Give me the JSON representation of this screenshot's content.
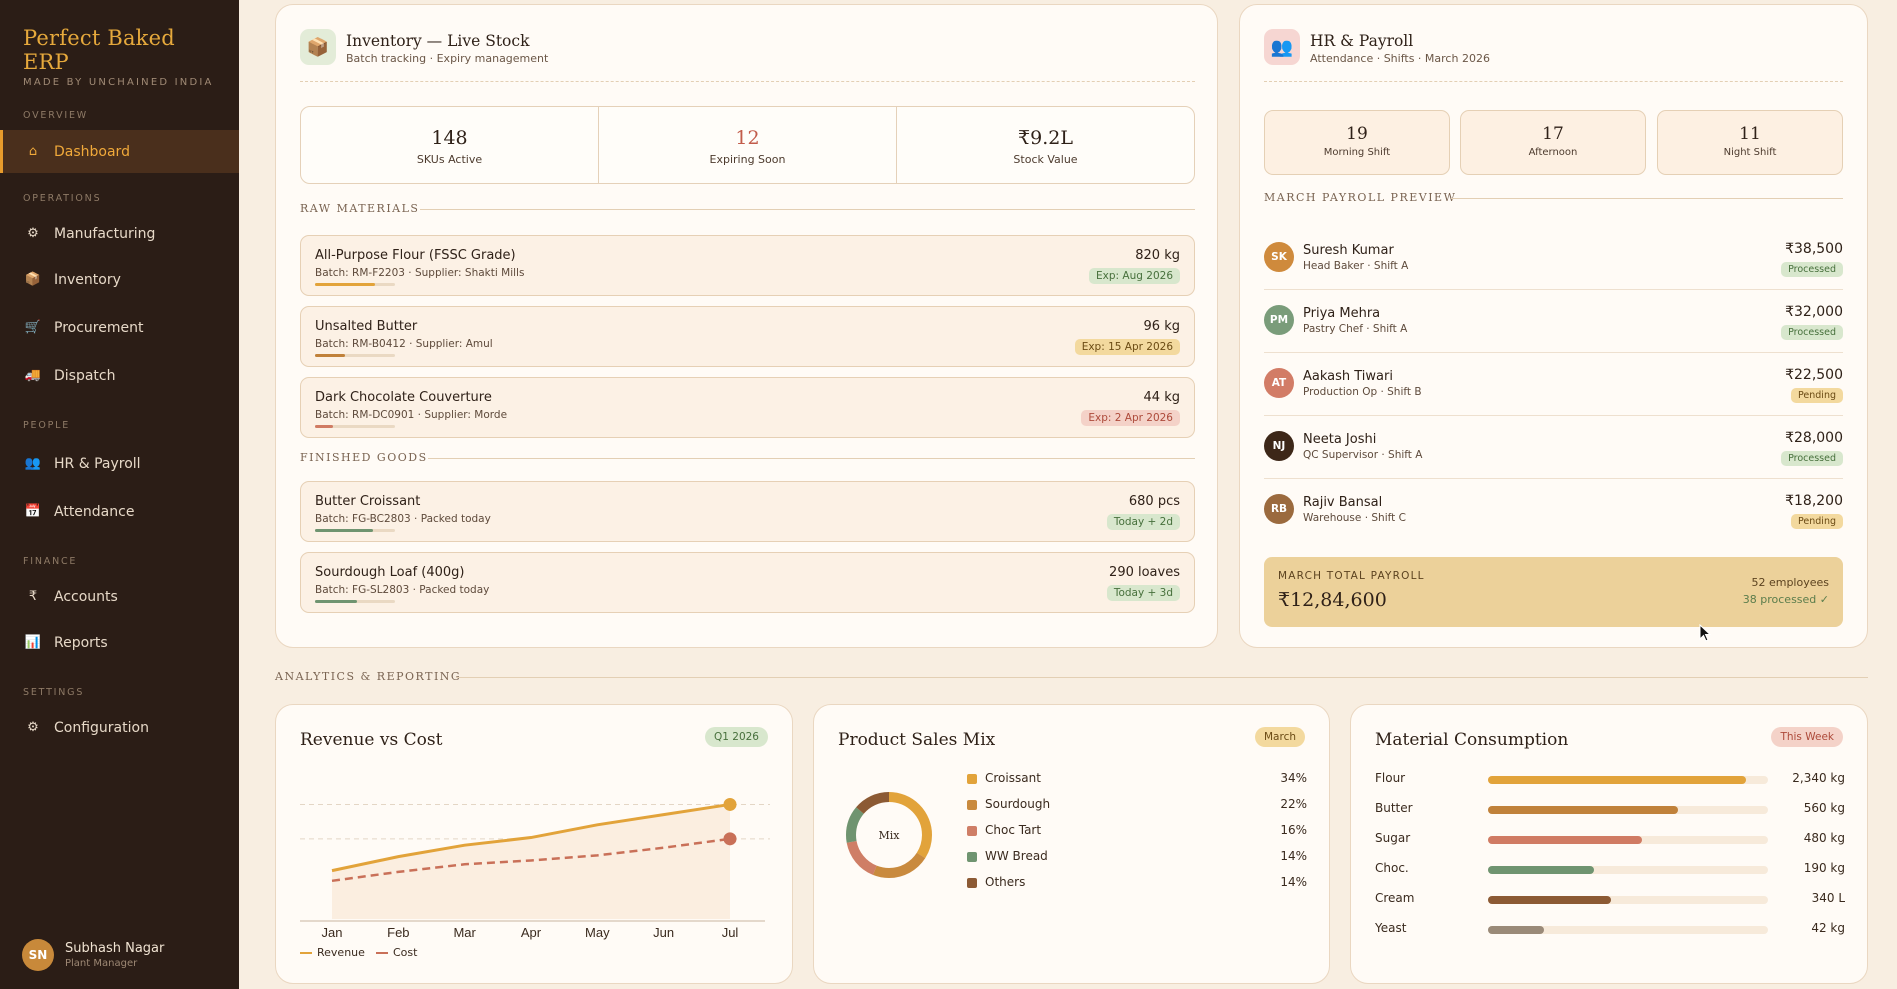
{
  "sidebar": {
    "brand_title": "Perfect Baked ERP",
    "brand_sub": "MADE BY UNCHAINED INDIA",
    "sections": {
      "overview": "OVERVIEW",
      "operations": "OPERATIONS",
      "people": "PEOPLE",
      "finance": "FINANCE",
      "settings": "SETTINGS"
    },
    "items": {
      "dashboard": {
        "label": "Dashboard",
        "icon": "⌂"
      },
      "manufacturing": {
        "label": "Manufacturing",
        "icon": "⚙"
      },
      "inventory": {
        "label": "Inventory",
        "icon": "📦"
      },
      "procurement": {
        "label": "Procurement",
        "icon": "🛒"
      },
      "dispatch": {
        "label": "Dispatch",
        "icon": "🚚"
      },
      "hr": {
        "label": "HR & Payroll",
        "icon": "👥"
      },
      "attendance": {
        "label": "Attendance",
        "icon": "📅"
      },
      "accounts": {
        "label": "Accounts",
        "icon": "₹"
      },
      "reports": {
        "label": "Reports",
        "icon": "📊"
      },
      "configuration": {
        "label": "Configuration",
        "icon": "⚙"
      }
    },
    "user": {
      "initials": "SN",
      "name": "Subhash Nagar",
      "role": "Plant Manager"
    }
  },
  "inventory": {
    "title": "Inventory — Live Stock",
    "subtitle": "Batch tracking · Expiry management",
    "icon": "📦",
    "stats": [
      {
        "value": "148",
        "label": "SKUs Active"
      },
      {
        "value": "12",
        "label": "Expiring Soon"
      },
      {
        "value": "₹9.2L",
        "label": "Stock Value"
      }
    ],
    "raw_label": "RAW MATERIALS",
    "finished_label": "FINISHED GOODS",
    "raw": [
      {
        "name": "All-Purpose Flour (FSSC Grade)",
        "batch": "Batch: RM-F2203 · Supplier: Shakti Mills",
        "qty": "820 kg",
        "badge": "Exp: Aug 2026",
        "level": 0.75
      },
      {
        "name": "Unsalted Butter",
        "batch": "Batch: RM-B0412 · Supplier: Amul",
        "qty": "96 kg",
        "badge": "Exp: 15 Apr 2026",
        "level": 0.38
      },
      {
        "name": "Dark Chocolate Couverture",
        "batch": "Batch: RM-DC0901 · Supplier: Morde",
        "qty": "44 kg",
        "badge": "Exp: 2 Apr 2026",
        "level": 0.22
      }
    ],
    "finished": [
      {
        "name": "Butter Croissant",
        "batch": "Batch: FG-BC2803 · Packed today",
        "qty": "680 pcs",
        "badge": "Today + 2d",
        "level": 0.72
      },
      {
        "name": "Sourdough Loaf (400g)",
        "batch": "Batch: FG-SL2803 · Packed today",
        "qty": "290 loaves",
        "badge": "Today + 3d",
        "level": 0.52
      }
    ]
  },
  "hr": {
    "title": "HR & Payroll",
    "subtitle": "Attendance · Shifts · March 2026",
    "icon": "👥",
    "shifts": [
      {
        "value": "19",
        "label": "Morning Shift"
      },
      {
        "value": "17",
        "label": "Afternoon"
      },
      {
        "value": "11",
        "label": "Night Shift"
      }
    ],
    "preview_label": "MARCH PAYROLL PREVIEW",
    "employees": [
      {
        "initials": "SK",
        "name": "Suresh Kumar",
        "role": "Head Baker · Shift A",
        "amount": "₹38,500",
        "status": "Processed"
      },
      {
        "initials": "PM",
        "name": "Priya Mehra",
        "role": "Pastry Chef · Shift A",
        "amount": "₹32,000",
        "status": "Processed"
      },
      {
        "initials": "AT",
        "name": "Aakash Tiwari",
        "role": "Production Op · Shift B",
        "amount": "₹22,500",
        "status": "Pending"
      },
      {
        "initials": "NJ",
        "name": "Neeta Joshi",
        "role": "QC Supervisor · Shift A",
        "amount": "₹28,000",
        "status": "Processed"
      },
      {
        "initials": "RB",
        "name": "Rajiv Bansal",
        "role": "Warehouse · Shift C",
        "amount": "₹18,200",
        "status": "Pending"
      }
    ],
    "total": {
      "label": "MARCH TOTAL PAYROLL",
      "amount": "₹12,84,600",
      "employees": "52 employees",
      "processed": "38 processed ✓"
    }
  },
  "analytics_label": "ANALYTICS & REPORTING",
  "revenue": {
    "title": "Revenue vs Cost",
    "badge": "Q1 2026",
    "legend_revenue": "Revenue",
    "legend_cost": "Cost",
    "colors": {
      "revenue": "#e2a33a",
      "cost": "#c97058"
    }
  },
  "chart_data": {
    "type": "line",
    "categories": [
      "Jan",
      "Feb",
      "Mar",
      "Apr",
      "May",
      "Jun",
      "Jul"
    ],
    "series": [
      {
        "name": "Revenue",
        "values": [
          38,
          49,
          58,
          64,
          74,
          82,
          90
        ]
      },
      {
        "name": "Cost",
        "values": [
          30,
          37,
          43,
          46,
          50,
          56,
          63
        ]
      }
    ],
    "ylim": [
      0,
      110
    ]
  },
  "sales_mix": {
    "title": "Product Sales Mix",
    "badge": "March",
    "center": "Mix",
    "items": [
      {
        "name": "Croissant",
        "pct": "34%",
        "value": 34,
        "color": "#e2a33a"
      },
      {
        "name": "Sourdough",
        "pct": "22%",
        "value": 22,
        "color": "#c98a3e"
      },
      {
        "name": "Choc Tart",
        "pct": "16%",
        "value": 16,
        "color": "#cf7e66"
      },
      {
        "name": "WW Bread",
        "pct": "14%",
        "value": 14,
        "color": "#6f9470"
      },
      {
        "name": "Others",
        "pct": "14%",
        "value": 14,
        "color": "#8c5a34"
      }
    ]
  },
  "materials": {
    "title": "Material Consumption",
    "badge": "This Week",
    "items": [
      {
        "name": "Flour",
        "value": "2,340 kg",
        "level": 0.92,
        "color": "#e2a33a"
      },
      {
        "name": "Butter",
        "value": "560 kg",
        "level": 0.68,
        "color": "#c0813a"
      },
      {
        "name": "Sugar",
        "value": "480 kg",
        "level": 0.55,
        "color": "#d07b63"
      },
      {
        "name": "Choc.",
        "value": "190 kg",
        "level": 0.38,
        "color": "#6f9470"
      },
      {
        "name": "Cream",
        "value": "340 L",
        "level": 0.44,
        "color": "#8c5a34"
      },
      {
        "name": "Yeast",
        "value": "42 kg",
        "level": 0.2,
        "color": "#9a8a78"
      }
    ]
  }
}
